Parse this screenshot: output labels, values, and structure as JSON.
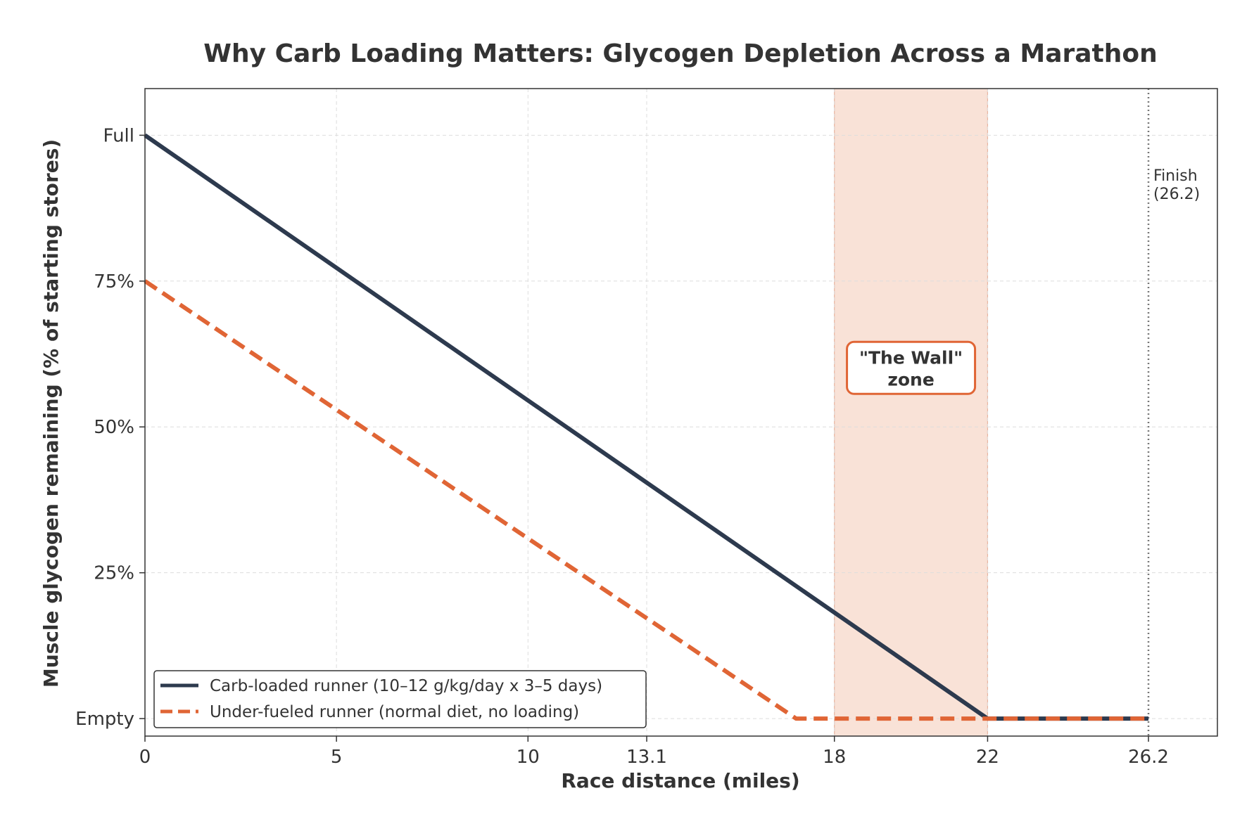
{
  "chart_data": {
    "type": "line",
    "title": "Why Carb Loading Matters: Glycogen Depletion Across a Marathon",
    "xlabel": "Race distance (miles)",
    "ylabel": "Muscle glycogen remaining (% of starting stores)",
    "xlim": [
      0,
      28
    ],
    "ylim": [
      -3,
      108
    ],
    "x_ticks": [
      0,
      5,
      10,
      13.1,
      18,
      22,
      26.2
    ],
    "x_tick_labels": [
      "0",
      "5",
      "10",
      "13.1",
      "18",
      "22",
      "26.2"
    ],
    "y_ticks": [
      0,
      25,
      50,
      75,
      100
    ],
    "y_tick_labels": [
      "Empty",
      "25%",
      "50%",
      "75%",
      "Full"
    ],
    "grid": true,
    "legend_position": "lower-left",
    "series": [
      {
        "name": "Carb-loaded runner (10–12 g/kg/day x 3–5 days)",
        "color": "#2d3a4e",
        "style": "solid",
        "points": [
          [
            0,
            100
          ],
          [
            22,
            0
          ],
          [
            26.2,
            0
          ]
        ]
      },
      {
        "name": "Under-fueled runner (normal diet, no loading)",
        "color": "#e06535",
        "style": "dashed",
        "points": [
          [
            0,
            75
          ],
          [
            17,
            0
          ],
          [
            26.2,
            0
          ]
        ]
      }
    ],
    "shaded_region": {
      "x_start": 18,
      "x_end": 22,
      "color": "#f6d5c6",
      "label_line1": "\"The Wall\"",
      "label_line2": "zone",
      "label_y": 60
    },
    "vertical_line": {
      "x": 26.2,
      "label_line1": "Finish",
      "label_line2": "(26.2)"
    }
  }
}
